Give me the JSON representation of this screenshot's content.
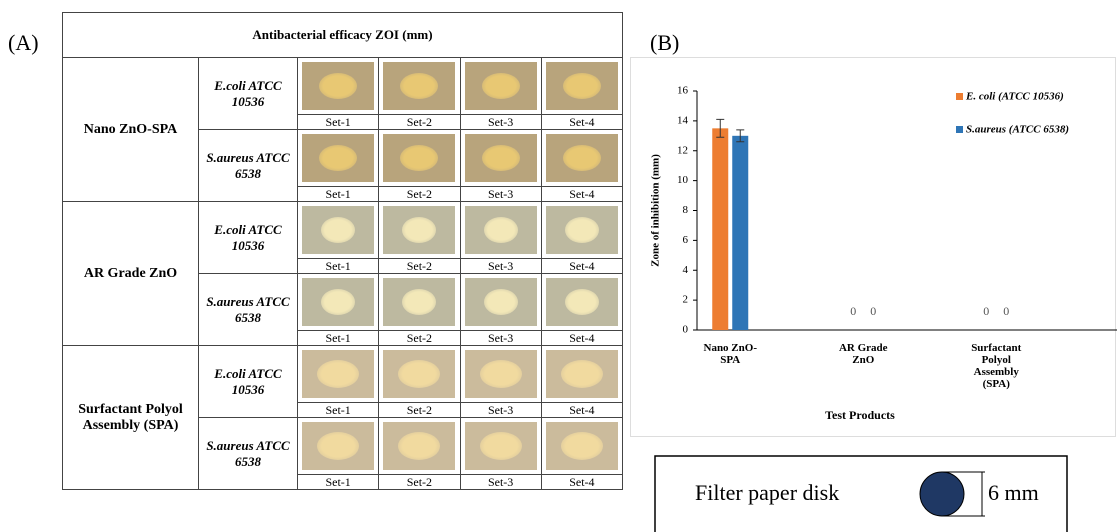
{
  "panel_labels": {
    "a": "(A)",
    "b": "(B)"
  },
  "table": {
    "header": "Antibacterial efficacy ZOI (mm)",
    "groups": [
      {
        "name": "Nano ZnO-SPA",
        "rows": [
          {
            "organism": "E.coli ATCC 10536",
            "sets": [
              "Set-1",
              "Set-2",
              "Set-3",
              "Set-4"
            ]
          },
          {
            "organism": "S.aureus ATCC 6538",
            "sets": [
              "Set-1",
              "Set-2",
              "Set-3",
              "Set-4"
            ]
          }
        ]
      },
      {
        "name": "AR Grade ZnO",
        "rows": [
          {
            "organism": "E.coli ATCC 10536",
            "sets": [
              "Set-1",
              "Set-2",
              "Set-3",
              "Set-4"
            ]
          },
          {
            "organism": "S.aureus ATCC 6538",
            "sets": [
              "Set-1",
              "Set-2",
              "Set-3",
              "Set-4"
            ]
          }
        ]
      },
      {
        "name": "Surfactant Polyol Assembly (SPA)",
        "rows": [
          {
            "organism": "E.coli ATCC 10536",
            "sets": [
              "Set-1",
              "Set-2",
              "Set-3",
              "Set-4"
            ]
          },
          {
            "organism": "S.aureus ATCC 6538",
            "sets": [
              "Set-1",
              "Set-2",
              "Set-3",
              "Set-4"
            ]
          }
        ]
      }
    ]
  },
  "chart_data": {
    "type": "bar",
    "x_label": "Test Products",
    "y_label": "Zone of inhibition (mm)",
    "categories": [
      "Nano ZnO-SPA",
      "AR Grade ZnO",
      "Surfactant Polyol Assembly (SPA)"
    ],
    "series": [
      {
        "name": "E. coli (ATCC 10536)",
        "color": "#ed7d31",
        "values": [
          13.5,
          0,
          0
        ],
        "errors": [
          0.6,
          null,
          null
        ]
      },
      {
        "name": "S.aureus (ATCC 6538)",
        "color": "#2e75b6",
        "values": [
          13,
          0,
          0
        ],
        "errors": [
          0.4,
          null,
          null
        ]
      }
    ],
    "ylim": [
      0,
      16
    ],
    "yticks": [
      0,
      2,
      4,
      6,
      8,
      10,
      12,
      14,
      16
    ],
    "legend": "upper right",
    "grid": false
  },
  "disk_legend": {
    "label": "Filter paper disk",
    "size": "6 mm"
  }
}
